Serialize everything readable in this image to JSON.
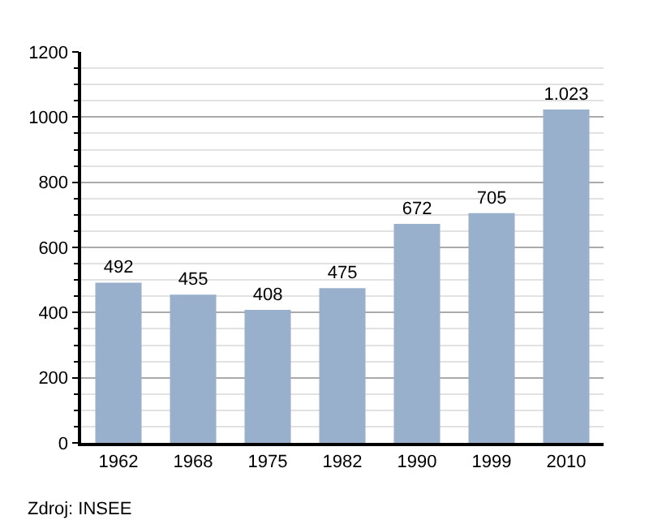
{
  "chart_data": {
    "type": "bar",
    "categories": [
      "1962",
      "1968",
      "1975",
      "1982",
      "1990",
      "1999",
      "2010"
    ],
    "values": [
      492,
      455,
      408,
      475,
      672,
      705,
      1023
    ],
    "value_labels": [
      "492",
      "455",
      "408",
      "475",
      "672",
      "705",
      "1.023"
    ],
    "color": "#98b0cc",
    "ylim": [
      0,
      1200
    ],
    "yticks": [
      0,
      200,
      400,
      600,
      800,
      1000,
      1200
    ],
    "grid": "y",
    "annotations": [
      "Zdroj: INSEE"
    ]
  }
}
